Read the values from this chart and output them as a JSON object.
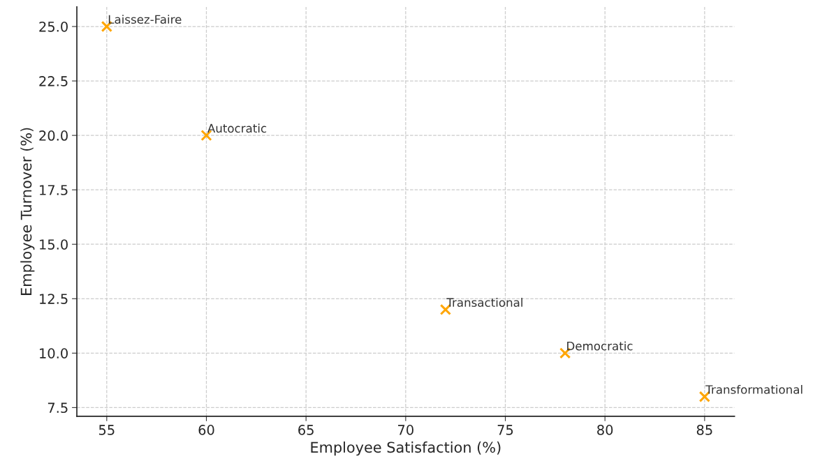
{
  "chart_data": {
    "type": "scatter",
    "xlabel": "Employee Satisfaction (%)",
    "ylabel": "Employee Turnover (%)",
    "x": [
      55,
      60,
      72,
      78,
      85
    ],
    "series": [
      {
        "color": "#ffa500",
        "values": [
          25,
          20,
          12,
          10,
          8
        ]
      }
    ],
    "marker": "cross",
    "annotations": [
      {
        "text": "Laissez-Faire",
        "x": 55,
        "y": 25
      },
      {
        "text": "Autocratic",
        "x": 60,
        "y": 20
      },
      {
        "text": "Transactional",
        "x": 72,
        "y": 12
      },
      {
        "text": "Democratic",
        "x": 78,
        "y": 10
      },
      {
        "text": "Transformational",
        "x": 85,
        "y": 8
      }
    ],
    "xlim": [
      53.5,
      86.5
    ],
    "xticks": [
      55,
      60,
      65,
      70,
      75,
      80,
      85
    ],
    "ylim": [
      7.1,
      25.9
    ],
    "yticks": [
      {
        "value": 7.5,
        "label": "7.5"
      },
      {
        "value": 10,
        "label": "10.0"
      },
      {
        "value": 12.5,
        "label": "12.5"
      },
      {
        "value": 15,
        "label": "15.0"
      },
      {
        "value": 17.5,
        "label": "17.5"
      },
      {
        "value": 20,
        "label": "20.0"
      },
      {
        "value": 22.5,
        "label": "22.5"
      },
      {
        "value": 25,
        "label": "25.0"
      }
    ],
    "grid": true
  }
}
